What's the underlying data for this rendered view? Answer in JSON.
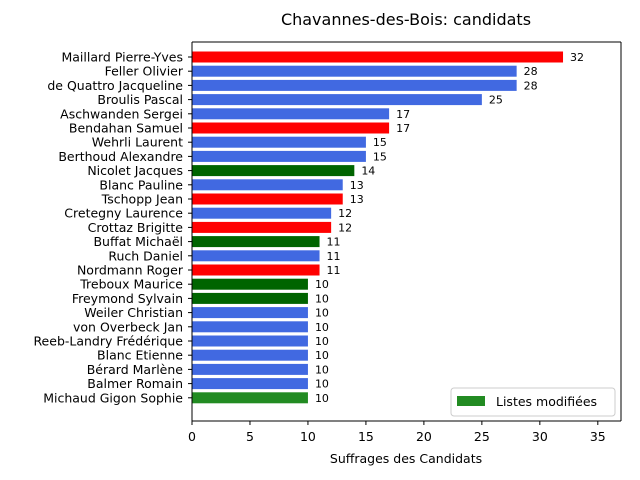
{
  "chart_data": {
    "type": "bar",
    "orientation": "horizontal",
    "title": "Chavannes-des-Bois: candidats",
    "xlabel": "Suffrages des Candidats",
    "ylabel": "",
    "xlim": [
      0,
      37
    ],
    "xticks": [
      "0",
      "5",
      "10",
      "15",
      "20",
      "25",
      "30",
      "35"
    ],
    "grid": false,
    "legend": {
      "position": "bottom-right",
      "entries": [
        {
          "label": "Listes modifiées",
          "color": "#228b22"
        }
      ]
    },
    "colors": {
      "blue": "#4169e1",
      "red": "#ff0000",
      "green": "#006400",
      "legend_green": "#228b22"
    },
    "bars": [
      {
        "label": "Maillard Pierre-Yves",
        "value": 32,
        "color": "red"
      },
      {
        "label": "Feller Olivier",
        "value": 28,
        "color": "blue"
      },
      {
        "label": "de Quattro Jacqueline",
        "value": 28,
        "color": "blue"
      },
      {
        "label": "Broulis Pascal",
        "value": 25,
        "color": "blue"
      },
      {
        "label": "Aschwanden Sergei",
        "value": 17,
        "color": "blue"
      },
      {
        "label": "Bendahan Samuel",
        "value": 17,
        "color": "red"
      },
      {
        "label": "Wehrli Laurent",
        "value": 15,
        "color": "blue"
      },
      {
        "label": "Berthoud Alexandre",
        "value": 15,
        "color": "blue"
      },
      {
        "label": "Nicolet Jacques",
        "value": 14,
        "color": "green"
      },
      {
        "label": "Blanc Pauline",
        "value": 13,
        "color": "blue"
      },
      {
        "label": "Tschopp Jean",
        "value": 13,
        "color": "red"
      },
      {
        "label": "Cretegny Laurence",
        "value": 12,
        "color": "blue"
      },
      {
        "label": "Crottaz Brigitte",
        "value": 12,
        "color": "red"
      },
      {
        "label": "Buffat Michaël",
        "value": 11,
        "color": "green"
      },
      {
        "label": "Ruch Daniel",
        "value": 11,
        "color": "blue"
      },
      {
        "label": "Nordmann Roger",
        "value": 11,
        "color": "red"
      },
      {
        "label": "Treboux Maurice",
        "value": 10,
        "color": "green"
      },
      {
        "label": "Freymond Sylvain",
        "value": 10,
        "color": "green"
      },
      {
        "label": "Weiler Christian",
        "value": 10,
        "color": "blue"
      },
      {
        "label": "von Overbeck Jan",
        "value": 10,
        "color": "blue"
      },
      {
        "label": "Reeb-Landry Frédérique",
        "value": 10,
        "color": "blue"
      },
      {
        "label": "Blanc Etienne",
        "value": 10,
        "color": "blue"
      },
      {
        "label": "Bérard Marlène",
        "value": 10,
        "color": "blue"
      },
      {
        "label": "Balmer Romain",
        "value": 10,
        "color": "blue"
      },
      {
        "label": "Michaud Gigon Sophie",
        "value": 10,
        "color": "legend_green"
      }
    ]
  }
}
